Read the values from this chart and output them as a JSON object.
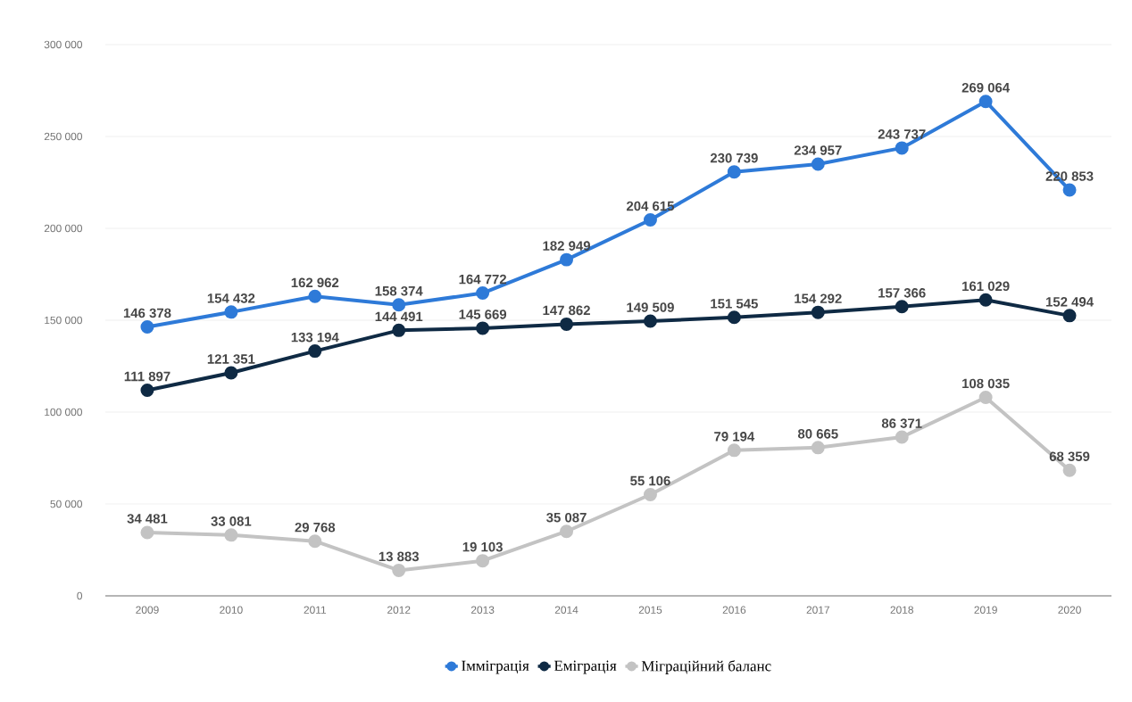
{
  "chart_data": {
    "type": "line",
    "categories": [
      "2009",
      "2010",
      "2011",
      "2012",
      "2013",
      "2014",
      "2015",
      "2016",
      "2017",
      "2018",
      "2019",
      "2020"
    ],
    "series": [
      {
        "name": "Імміграція",
        "color": "#2e7ad8",
        "values": [
          146378,
          154432,
          162962,
          158374,
          164772,
          182949,
          204615,
          230739,
          234957,
          243737,
          269064,
          220853
        ],
        "value_labels": [
          "146 378",
          "154 432",
          "162 962",
          "158 374",
          "164 772",
          "182 949",
          "204 615",
          "230 739",
          "234 957",
          "243 737",
          "269 064",
          "220 853"
        ]
      },
      {
        "name": "Еміграція",
        "color": "#0f2a44",
        "values": [
          111897,
          121351,
          133194,
          144491,
          145669,
          147862,
          149509,
          151545,
          154292,
          157366,
          161029,
          152494
        ],
        "value_labels": [
          "111 897",
          "121 351",
          "133 194",
          "144 491",
          "145 669",
          "147 862",
          "149 509",
          "151 545",
          "154 292",
          "157 366",
          "161 029",
          "152 494"
        ]
      },
      {
        "name": "Міграційний баланс",
        "color": "#c3c3c3",
        "values": [
          34481,
          33081,
          29768,
          13883,
          19103,
          35087,
          55106,
          79194,
          80665,
          86371,
          108035,
          68359
        ],
        "value_labels": [
          "34 481",
          "33 081",
          "29 768",
          "13 883",
          "19 103",
          "35 087",
          "55 106",
          "79 194",
          "80 665",
          "86 371",
          "108 035",
          "68 359"
        ]
      }
    ],
    "ylim": [
      0,
      300000
    ],
    "yticks": [
      0,
      {
        "value": 50000,
        "label": "50 000"
      },
      {
        "value": 100000,
        "label": "100 000"
      },
      {
        "value": 150000,
        "label": "150 000"
      },
      {
        "value": 200000,
        "label": "200 000"
      },
      {
        "value": 250000,
        "label": "250 000"
      },
      {
        "value": 300000,
        "label": "300 000"
      }
    ],
    "grid": "y",
    "legend": "bottom",
    "marker": "circle",
    "line_style": "solid"
  }
}
